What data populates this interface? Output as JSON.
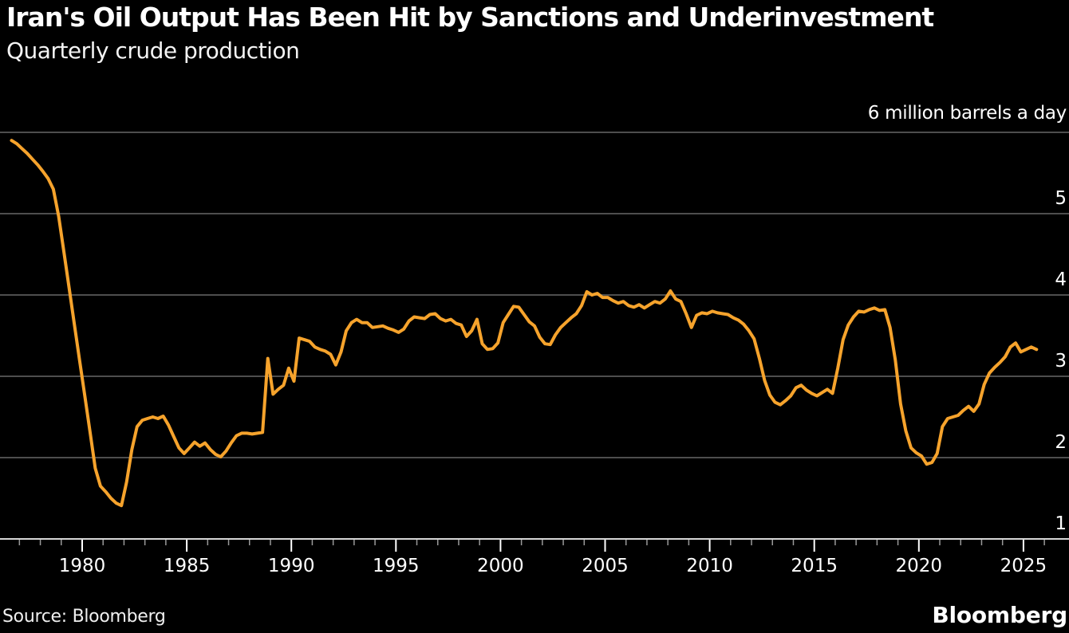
{
  "header": {
    "title": "Iran's Oil Output Has Been Hit by Sanctions and Underinvestment",
    "subtitle": "Quarterly crude production"
  },
  "footer": {
    "source_label": "Source: Bloomberg",
    "brand": "Bloomberg"
  },
  "colors": {
    "background": "#000000",
    "text": "#ffffff",
    "gridline": "#4e4e4e",
    "axis_line": "#d6d6d6",
    "minor_tick": "#9a9a9a",
    "major_tick": "#ffffff",
    "line": "#F6A32C"
  },
  "chart_data": {
    "type": "line",
    "title": "Iran's Oil Output Has Been Hit by Sanctions and Underinvestment",
    "subtitle": "Quarterly crude production",
    "unit_label": "6 million barrels a day",
    "series_name": "Iran quarterly crude oil production (million barrels a day)",
    "frequency": "quarterly",
    "start": "1976 Q3",
    "end": "2025 Q3",
    "ylim": [
      1,
      6
    ],
    "y_ticks": [
      1,
      2,
      3,
      4,
      5,
      6
    ],
    "y_axis_labels": [
      "5",
      "4",
      "3",
      "2",
      "1"
    ],
    "x_ticks": [
      1980,
      1985,
      1990,
      1995,
      2000,
      2005,
      2010,
      2015,
      2020,
      2025
    ],
    "x_minor_tick_years": "every year 1977-2026",
    "grid": true,
    "legend": false,
    "values": [
      5.9,
      5.86,
      5.8,
      5.74,
      5.67,
      5.6,
      5.52,
      5.43,
      5.3,
      4.97,
      4.53,
      4.09,
      3.64,
      3.2,
      2.76,
      2.32,
      1.87,
      1.65,
      1.58,
      1.5,
      1.44,
      1.41,
      1.7,
      2.1,
      2.38,
      2.46,
      2.48,
      2.5,
      2.48,
      2.51,
      2.4,
      2.26,
      2.12,
      2.05,
      2.12,
      2.19,
      2.14,
      2.18,
      2.1,
      2.04,
      2.01,
      2.08,
      2.18,
      2.27,
      2.3,
      2.3,
      2.29,
      2.3,
      2.31,
      3.22,
      2.78,
      2.84,
      2.89,
      3.1,
      2.94,
      3.47,
      3.45,
      3.43,
      3.36,
      3.33,
      3.31,
      3.27,
      3.14,
      3.3,
      3.56,
      3.66,
      3.7,
      3.66,
      3.66,
      3.6,
      3.61,
      3.62,
      3.59,
      3.57,
      3.54,
      3.58,
      3.68,
      3.73,
      3.72,
      3.71,
      3.76,
      3.77,
      3.71,
      3.68,
      3.7,
      3.65,
      3.63,
      3.49,
      3.56,
      3.7,
      3.4,
      3.33,
      3.34,
      3.41,
      3.66,
      3.76,
      3.86,
      3.85,
      3.76,
      3.67,
      3.62,
      3.48,
      3.4,
      3.39,
      3.51,
      3.6,
      3.66,
      3.72,
      3.77,
      3.87,
      4.04,
      4.0,
      4.02,
      3.97,
      3.97,
      3.93,
      3.9,
      3.92,
      3.87,
      3.85,
      3.88,
      3.84,
      3.88,
      3.92,
      3.9,
      3.95,
      4.05,
      3.95,
      3.92,
      3.77,
      3.6,
      3.75,
      3.78,
      3.77,
      3.8,
      3.78,
      3.77,
      3.76,
      3.72,
      3.69,
      3.64,
      3.56,
      3.46,
      3.22,
      2.95,
      2.77,
      2.68,
      2.65,
      2.7,
      2.76,
      2.86,
      2.89,
      2.83,
      2.79,
      2.76,
      2.8,
      2.84,
      2.79,
      3.1,
      3.45,
      3.63,
      3.73,
      3.8,
      3.79,
      3.82,
      3.84,
      3.81,
      3.82,
      3.6,
      3.2,
      2.66,
      2.33,
      2.12,
      2.06,
      2.02,
      1.92,
      1.94,
      2.05,
      2.38,
      2.48,
      2.5,
      2.52,
      2.58,
      2.63,
      2.57,
      2.66,
      2.9,
      3.04,
      3.11,
      3.17,
      3.24,
      3.36,
      3.41,
      3.3,
      3.33,
      3.36,
      3.33
    ]
  }
}
